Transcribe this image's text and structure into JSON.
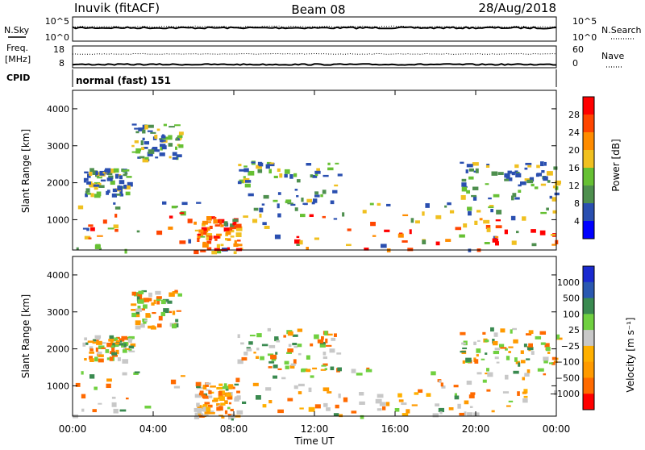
{
  "header": {
    "station": "Inuvik (fitACF)",
    "beam": "Beam 08",
    "date": "28/Aug/2018"
  },
  "noise_panel": {
    "left_label": "N.Sky",
    "left_ticks": [
      "10^5",
      "10^0"
    ],
    "right_label": "N.Search",
    "right_ticks": [
      "10^5",
      "10^0"
    ],
    "noise_sky_level": 0.55,
    "noise_search_level": 0.6
  },
  "freq_panel": {
    "left_label_1": "Freq.",
    "left_label_2": "[MHz]",
    "left_ticks": [
      "18",
      "8"
    ],
    "freq_range": [
      8,
      18
    ],
    "freq_value": 9.5,
    "right_label": "Nave",
    "right_ticks": [
      "60",
      "0"
    ],
    "nave_range": [
      0,
      60
    ],
    "nave_value": 38
  },
  "cpid_panel": {
    "label": "CPID",
    "text": "normal (fast) 151"
  },
  "colors": {
    "power_scale": [
      "#0000ff",
      "#2a4fb0",
      "#4e8f4e",
      "#66c033",
      "#f0c020",
      "#ff8c00",
      "#ff4500",
      "#ff0000"
    ],
    "velocity_scale": [
      "#ff0000",
      "#ff6a00",
      "#ff9a00",
      "#ffb000",
      "#c8c8c8",
      "#70d040",
      "#3a8a50",
      "#2a58b0",
      "#1a2ad0"
    ]
  },
  "chart_data": [
    {
      "type": "heatmap",
      "title": "",
      "ylabel": "Slant Range [km]",
      "yticks": [
        "4000",
        "3000",
        "2000",
        "1000"
      ],
      "ylim": [
        180,
        4500
      ],
      "colorbar_label": "Power [dB]",
      "colorbar_ticks": [
        "28",
        "24",
        "20",
        "16",
        "12",
        "8",
        "4"
      ],
      "colorbar_range": [
        0,
        32
      ]
    },
    {
      "type": "heatmap",
      "title": "",
      "ylabel": "Slant Range [km]",
      "yticks": [
        "4000",
        "3000",
        "2000",
        "1000"
      ],
      "ylim": [
        180,
        4500
      ],
      "colorbar_label": "Velocity [m s⁻¹]",
      "colorbar_ticks": [
        "1000",
        "500",
        "100",
        "25",
        "−25",
        "−100",
        "−500",
        "−1000"
      ],
      "xlabel": "Time UT",
      "xticks": [
        "00:00",
        "04:00",
        "08:00",
        "12:00",
        "16:00",
        "20:00",
        "00:00"
      ]
    }
  ]
}
